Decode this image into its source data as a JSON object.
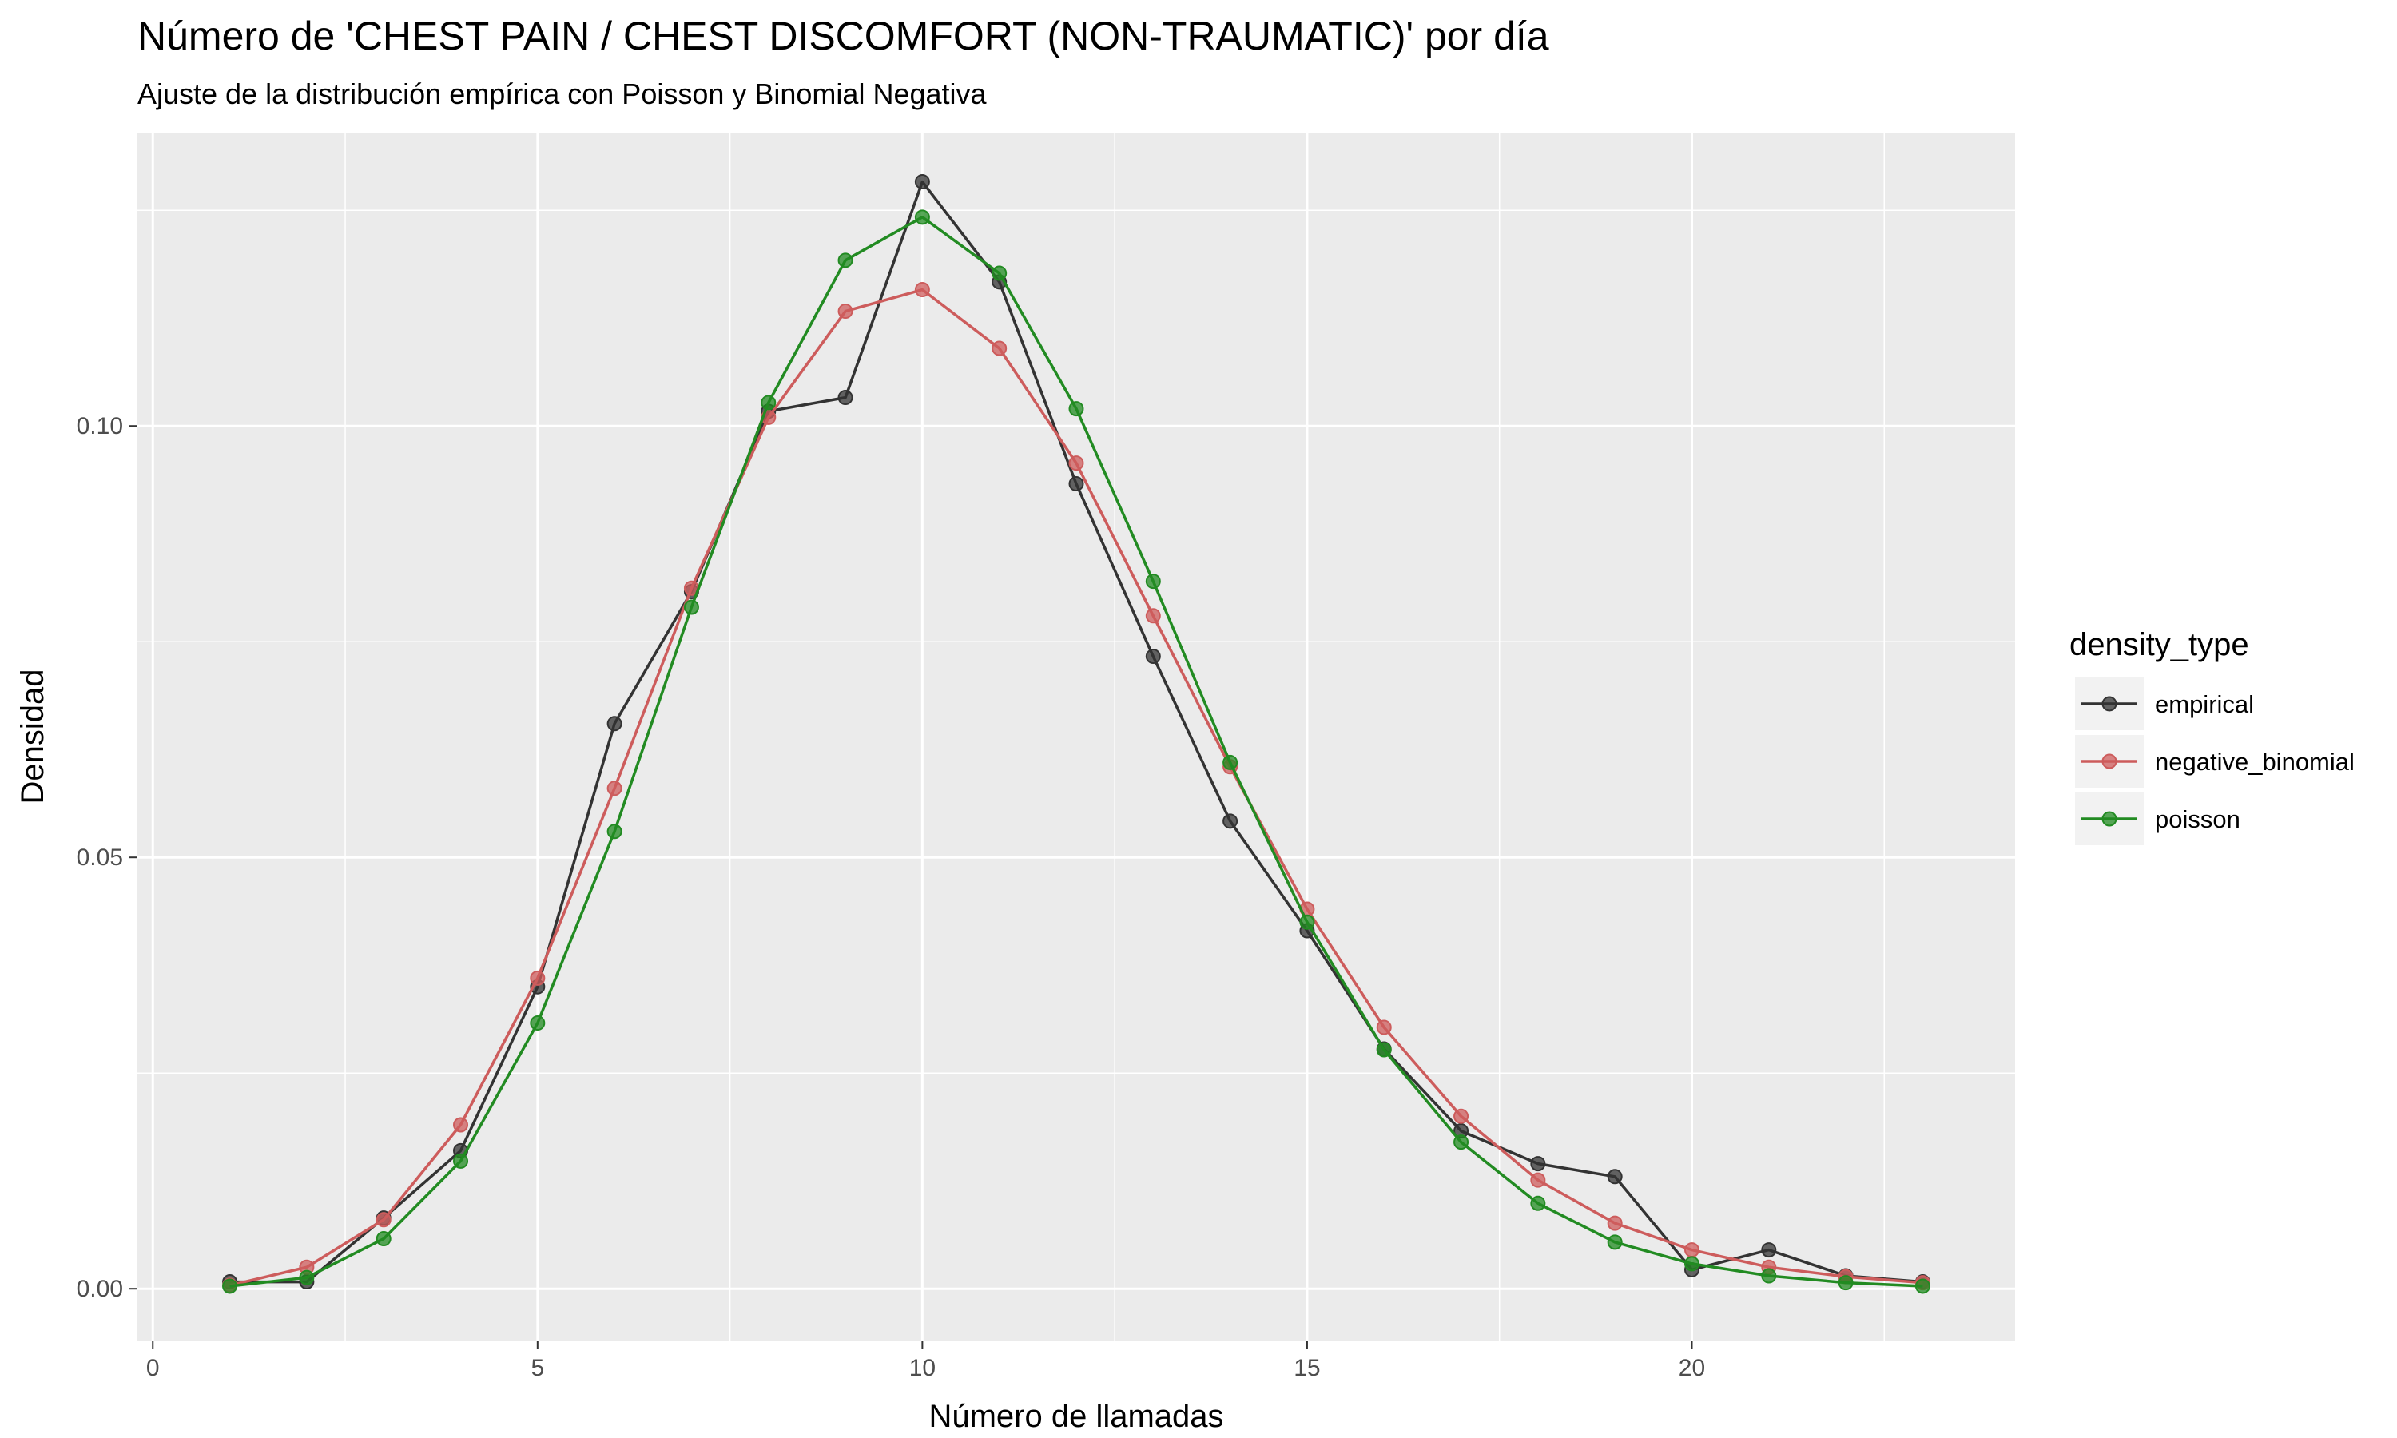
{
  "chart_data": {
    "type": "line",
    "title": "Número de 'CHEST PAIN / CHEST DISCOMFORT (NON-TRAUMATIC)' por día",
    "subtitle": "Ajuste de la distribución empírica con Poisson y Binomial Negativa",
    "xlabel": "Número de llamadas",
    "ylabel": "Densidad",
    "xlim": [
      -0.2,
      24.2
    ],
    "ylim": [
      -0.006,
      0.134
    ],
    "x_ticks": [
      0,
      5,
      10,
      15,
      20
    ],
    "x_tick_labels": [
      "0",
      "5",
      "10",
      "15",
      "20"
    ],
    "y_ticks": [
      0.0,
      0.05,
      0.1
    ],
    "y_tick_labels": [
      "0.00",
      "0.05",
      "0.10"
    ],
    "grid": true,
    "legend": {
      "title": "density_type",
      "position": "right"
    },
    "x": [
      1,
      2,
      3,
      4,
      5,
      6,
      7,
      8,
      9,
      10,
      11,
      12,
      13,
      14,
      15,
      16,
      17,
      18,
      19,
      20,
      21,
      22,
      23
    ],
    "series": [
      {
        "name": "empirical",
        "color": "#333333",
        "values": [
          0.0008,
          0.0008,
          0.0082,
          0.016,
          0.035,
          0.0655,
          0.0808,
          0.1017,
          0.1033,
          0.1283,
          0.1167,
          0.0933,
          0.0733,
          0.0542,
          0.0415,
          0.0278,
          0.0183,
          0.0145,
          0.013,
          0.0022,
          0.0045,
          0.0015,
          0.0008
        ]
      },
      {
        "name": "negative_binomial",
        "color": "#cd5c5c",
        "values": [
          0.0004,
          0.0025,
          0.008,
          0.019,
          0.036,
          0.058,
          0.0812,
          0.101,
          0.1133,
          0.1158,
          0.109,
          0.0957,
          0.078,
          0.0605,
          0.044,
          0.0303,
          0.02,
          0.0126,
          0.0076,
          0.0045,
          0.0025,
          0.0014,
          0.0007
        ]
      },
      {
        "name": "poisson",
        "color": "#228b22",
        "values": [
          0.0003,
          0.0013,
          0.0058,
          0.0148,
          0.0308,
          0.053,
          0.079,
          0.1027,
          0.1192,
          0.1242,
          0.1177,
          0.102,
          0.082,
          0.061,
          0.0425,
          0.0277,
          0.017,
          0.0099,
          0.0054,
          0.0029,
          0.0015,
          0.0007,
          0.0003
        ]
      }
    ]
  }
}
